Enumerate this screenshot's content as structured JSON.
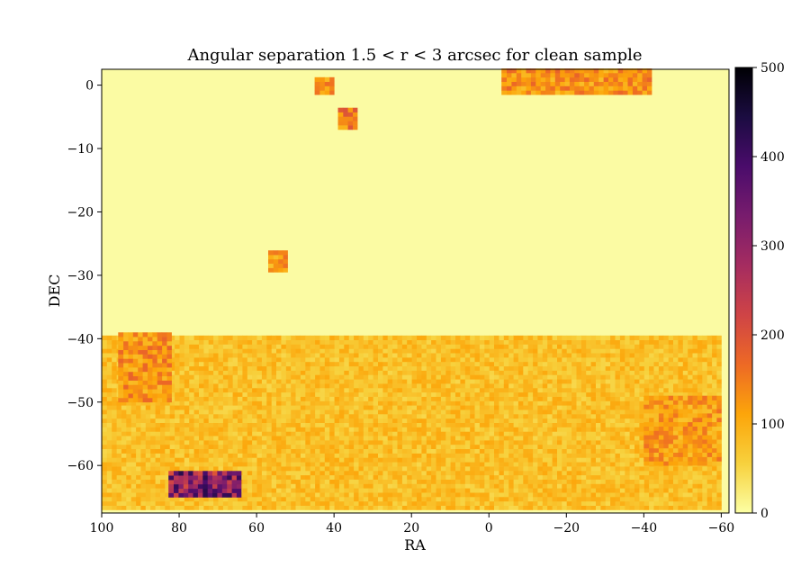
{
  "chart_data": {
    "type": "heatmap",
    "title": "Angular separation 1.5 < r < 3 arcsec for clean sample",
    "xlabel": "RA",
    "ylabel": "DEC",
    "xlim": [
      100,
      -62
    ],
    "ylim": [
      -67.5,
      2.5
    ],
    "x_ticks": [
      100,
      80,
      60,
      40,
      20,
      0,
      -20,
      -40,
      -60
    ],
    "x_tick_labels": [
      "100",
      "80",
      "60",
      "40",
      "20",
      "0",
      "−20",
      "−40",
      "−60"
    ],
    "y_ticks": [
      0,
      -10,
      -20,
      -30,
      -40,
      -50,
      -60
    ],
    "y_tick_labels": [
      "0",
      "−10",
      "−20",
      "−30",
      "−40",
      "−50",
      "−60"
    ],
    "colorbar": {
      "label": "",
      "range": [
        0,
        500
      ],
      "ticks": [
        0,
        100,
        200,
        300,
        400,
        500
      ],
      "tick_labels": [
        "0",
        "100",
        "200",
        "300",
        "400",
        "500"
      ],
      "colormap": "inferno_r",
      "stops": [
        "#fcffa4",
        "#f7d13d",
        "#fca50a",
        "#ed6925",
        "#cf4446",
        "#a52c60",
        "#781c6d",
        "#4a0c6b",
        "#1b0c41",
        "#000004"
      ]
    },
    "grid": false,
    "regions": [
      {
        "name": "north stripe",
        "ra_min": -42,
        "ra_max": -4,
        "dec_min": -1.5,
        "dec_max": 2.2,
        "typical_count": 130
      },
      {
        "name": "small patch A",
        "ra_min": 40,
        "ra_max": 44,
        "dec_min": -1.5,
        "dec_max": 1,
        "typical_count": 140
      },
      {
        "name": "small patch B",
        "ra_min": 34,
        "ra_max": 38,
        "dec_min": -7,
        "dec_max": -4,
        "typical_count": 150
      },
      {
        "name": "small patch C",
        "ra_min": 52,
        "ra_max": 56,
        "dec_min": -29.5,
        "dec_max": -26.5,
        "typical_count": 120
      },
      {
        "name": "south footprint",
        "ra_min": -60,
        "ra_max": 99,
        "dec_min": -67,
        "dec_max": -39.5,
        "typical_count": 80
      },
      {
        "name": "south-east dense corner",
        "ra_min": 82,
        "ra_max": 95,
        "dec_min": -50,
        "dec_max": -39.5,
        "typical_count": 130
      },
      {
        "name": "south-west dense region",
        "ra_min": -60,
        "ra_max": -40,
        "dec_min": -60,
        "dec_max": -49,
        "typical_count": 120
      },
      {
        "name": "peak streak",
        "ra_min": 64,
        "ra_max": 82,
        "dec_min": -65,
        "dec_max": -61.5,
        "typical_count": 320
      }
    ]
  }
}
